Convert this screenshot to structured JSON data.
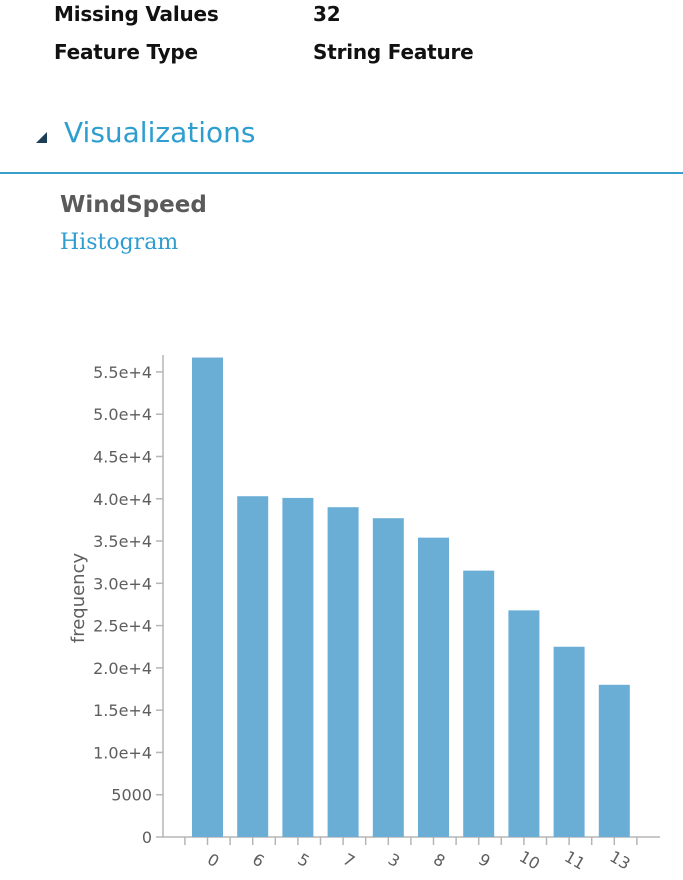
{
  "properties": [
    {
      "label": "Missing Values",
      "value": "32"
    },
    {
      "label": "Feature Type",
      "value": "String Feature"
    }
  ],
  "section": {
    "title": "Visualizations",
    "icon": "collapse-triangle-icon",
    "accent_color": "#2e9dd0"
  },
  "visualization": {
    "column_name": "WindSpeed",
    "kind": "Histogram"
  },
  "chart_data": {
    "type": "bar",
    "categories": [
      "0",
      "6",
      "5",
      "7",
      "3",
      "8",
      "9",
      "10",
      "11",
      "13"
    ],
    "values": [
      56700,
      40300,
      40100,
      39000,
      37700,
      35400,
      31500,
      26800,
      22500,
      18000
    ],
    "ylabel": "frequency",
    "xlabel": "",
    "ylim": [
      0,
      57000
    ],
    "yticks": [
      0,
      5000,
      10000,
      15000,
      20000,
      25000,
      30000,
      35000,
      40000,
      45000,
      50000,
      55000
    ],
    "ytick_labels": [
      "0",
      "5000",
      "1.0e+4",
      "1.5e+4",
      "2.0e+4",
      "2.5e+4",
      "3.0e+4",
      "3.5e+4",
      "4.0e+4",
      "4.5e+4",
      "5.0e+4",
      "5.5e+4"
    ],
    "bar_color": "#6aaed5",
    "axis_color": "#b5b5b5",
    "grid": false,
    "legend": "none"
  }
}
